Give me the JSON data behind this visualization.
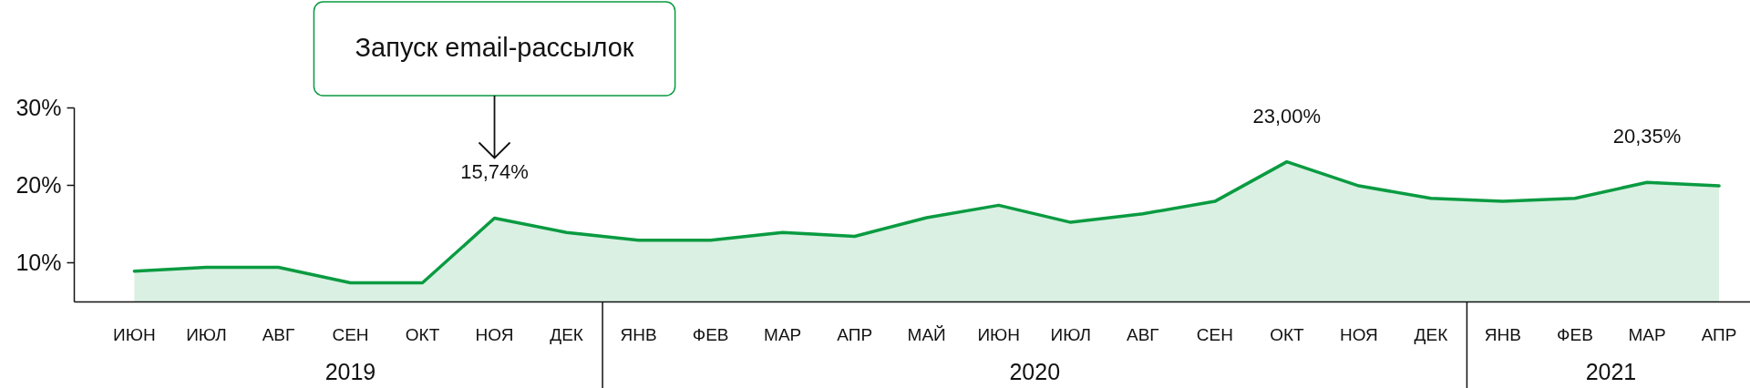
{
  "chart_data": {
    "type": "area",
    "categories": [
      "ИЮН",
      "ИЮЛ",
      "АВГ",
      "СЕН",
      "ОКТ",
      "НОЯ",
      "ДЕК",
      "ЯНВ",
      "ФЕВ",
      "МАР",
      "АПР",
      "МАЙ",
      "ИЮН",
      "ИЮЛ",
      "АВГ",
      "СЕН",
      "ОКТ",
      "НОЯ",
      "ДЕК",
      "ЯНВ",
      "ФЕВ",
      "МАР",
      "АПР"
    ],
    "series": [
      {
        "color": "#0a9b41",
        "values": [
          8.9,
          9.4,
          9.4,
          7.4,
          7.4,
          15.74,
          13.9,
          12.9,
          12.9,
          13.9,
          13.4,
          15.8,
          17.4,
          15.2,
          16.3,
          17.9,
          23.0,
          19.9,
          18.3,
          17.9,
          18.3,
          20.35,
          19.9
        ],
        "value_labels": [
          null,
          null,
          null,
          null,
          null,
          "15,74%",
          null,
          null,
          null,
          null,
          null,
          null,
          null,
          null,
          null,
          null,
          "23,00%",
          null,
          null,
          null,
          null,
          "20,35%",
          null
        ]
      }
    ],
    "ylim": [
      5,
      30
    ],
    "yticks": [
      {
        "value": 10,
        "label": "10%"
      },
      {
        "value": 20,
        "label": "20%"
      },
      {
        "value": 30,
        "label": "30%"
      }
    ],
    "grid": false,
    "legend": false,
    "marker": "none",
    "line_style": "solid",
    "annotations": [
      "Запуск email-рассылок",
      "2019",
      "2020",
      "2021"
    ]
  }
}
